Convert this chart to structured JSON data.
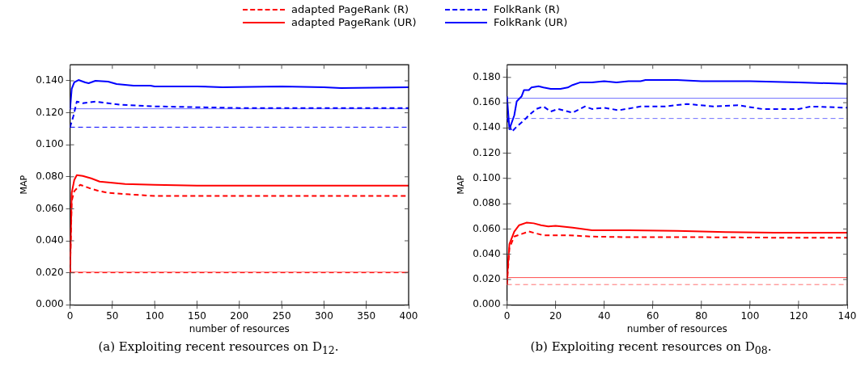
{
  "chart_data": [
    {
      "type": "line",
      "xlabel": "number of resources",
      "ylabel": "MAP",
      "legend": "top",
      "grid": false,
      "marker": "none",
      "xlim": [
        0,
        400
      ],
      "xticks": [
        0,
        50,
        100,
        150,
        200,
        250,
        300,
        350,
        400
      ],
      "ylim": [
        0,
        0.15
      ],
      "yticks": [
        {
          "value": 0,
          "label": "0.000"
        },
        {
          "value": 0.02,
          "label": "0.020"
        },
        {
          "value": 0.04,
          "label": "0.040"
        },
        {
          "value": 0.06,
          "label": "0.060"
        },
        {
          "value": 0.08,
          "label": "0.080"
        },
        {
          "value": 0.1,
          "label": "0.100"
        },
        {
          "value": 0.12,
          "label": "0.120"
        },
        {
          "value": 0.14,
          "label": "0.140"
        }
      ],
      "series": [
        {
          "name": "adapted PageRank (R)",
          "color": "#ff0000",
          "line_style": "dashed",
          "x": [
            0,
            2,
            5,
            12,
            25,
            35,
            45,
            70,
            100,
            400
          ],
          "values": [
            0.02,
            0.065,
            0.071,
            0.075,
            0.0725,
            0.071,
            0.07,
            0.069,
            0.068,
            0.068
          ]
        },
        {
          "name": "adapted PageRank (UR)",
          "color": "#ff0000",
          "line_style": "solid",
          "x": [
            0,
            2,
            5,
            8,
            15,
            25,
            35,
            45,
            65,
            100,
            150,
            400
          ],
          "values": [
            0.02,
            0.07,
            0.078,
            0.081,
            0.0805,
            0.079,
            0.077,
            0.0765,
            0.0755,
            0.075,
            0.0745,
            0.0745
          ]
        },
        {
          "name": "FolkRank (R)",
          "color": "#0000ff",
          "line_style": "dashed",
          "x": [
            0,
            4,
            8,
            15,
            30,
            45,
            60,
            100,
            150,
            200,
            400
          ],
          "values": [
            0.111,
            0.118,
            0.127,
            0.126,
            0.127,
            0.126,
            0.125,
            0.124,
            0.1235,
            0.123,
            0.123
          ]
        },
        {
          "name": "FolkRank (UR)",
          "color": "#0000ff",
          "line_style": "solid",
          "x": [
            0,
            2,
            5,
            10,
            18,
            22,
            30,
            45,
            55,
            75,
            95,
            100,
            150,
            180,
            250,
            300,
            320,
            400
          ],
          "values": [
            0.122,
            0.135,
            0.139,
            0.1405,
            0.139,
            0.1385,
            0.14,
            0.1395,
            0.138,
            0.137,
            0.137,
            0.1365,
            0.1365,
            0.136,
            0.1365,
            0.136,
            0.1355,
            0.136
          ]
        }
      ],
      "ref_lines": [
        {
          "axis": "y",
          "value": 0.1225,
          "color": "#6f6fff",
          "line_style": "solid"
        },
        {
          "axis": "y",
          "value": 0.111,
          "color": "#0000ff",
          "line_style": "dashed"
        },
        {
          "axis": "y",
          "value": 0.0205,
          "color": "#ff7070",
          "line_style": "solid"
        },
        {
          "axis": "y",
          "value": 0.02,
          "color": "#ff0000",
          "line_style": "dashed"
        }
      ],
      "annotations": [
        "(a) Exploiting recent resources on D$_{12}$."
      ]
    },
    {
      "type": "line",
      "xlabel": "number of resources",
      "ylabel": "MAP",
      "legend": "top",
      "grid": false,
      "marker": "none",
      "xlim": [
        0,
        140
      ],
      "xticks": [
        0,
        20,
        40,
        60,
        80,
        100,
        120,
        140
      ],
      "ylim": [
        0,
        0.19
      ],
      "yticks": [
        {
          "value": 0,
          "label": "0.000"
        },
        {
          "value": 0.02,
          "label": "0.020"
        },
        {
          "value": 0.04,
          "label": "0.040"
        },
        {
          "value": 0.06,
          "label": "0.060"
        },
        {
          "value": 0.08,
          "label": "0.080"
        },
        {
          "value": 0.1,
          "label": "0.100"
        },
        {
          "value": 0.12,
          "label": "0.120"
        },
        {
          "value": 0.14,
          "label": "0.140"
        },
        {
          "value": 0.16,
          "label": "0.160"
        },
        {
          "value": 0.18,
          "label": "0.180"
        }
      ],
      "series": [
        {
          "name": "adapted PageRank (R)",
          "color": "#ff0000",
          "line_style": "dashed",
          "x": [
            0,
            1,
            3,
            6,
            9,
            15,
            25,
            35,
            50,
            80,
            120,
            140
          ],
          "values": [
            0.016,
            0.045,
            0.054,
            0.056,
            0.058,
            0.055,
            0.055,
            0.054,
            0.0535,
            0.0535,
            0.053,
            0.053
          ]
        },
        {
          "name": "adapted PageRank (UR)",
          "color": "#ff0000",
          "line_style": "solid",
          "x": [
            0,
            1,
            3,
            5,
            8,
            11,
            14,
            17,
            20,
            27,
            35,
            50,
            70,
            90,
            110,
            140
          ],
          "values": [
            0.02,
            0.048,
            0.058,
            0.063,
            0.065,
            0.0645,
            0.063,
            0.062,
            0.0625,
            0.061,
            0.059,
            0.059,
            0.0585,
            0.0575,
            0.057,
            0.057
          ]
        },
        {
          "name": "FolkRank (R)",
          "color": "#0000ff",
          "line_style": "dashed",
          "x": [
            0,
            2,
            4,
            7,
            9,
            12,
            15,
            18,
            21,
            27,
            32,
            35,
            40,
            46,
            55,
            65,
            74,
            85,
            95,
            105,
            120,
            125,
            140
          ],
          "values": [
            0.148,
            0.137,
            0.141,
            0.146,
            0.15,
            0.155,
            0.157,
            0.153,
            0.155,
            0.152,
            0.157,
            0.155,
            0.156,
            0.154,
            0.157,
            0.157,
            0.159,
            0.157,
            0.158,
            0.155,
            0.155,
            0.157,
            0.156
          ]
        },
        {
          "name": "FolkRank (UR)",
          "color": "#0000ff",
          "line_style": "solid",
          "x": [
            0,
            1,
            3,
            4,
            6,
            7,
            9,
            10,
            13,
            15,
            18,
            22,
            25,
            27,
            30,
            35,
            40,
            45,
            50,
            55,
            57,
            70,
            80,
            100,
            120,
            140
          ],
          "values": [
            0.165,
            0.139,
            0.15,
            0.161,
            0.165,
            0.17,
            0.17,
            0.172,
            0.173,
            0.172,
            0.171,
            0.171,
            0.172,
            0.174,
            0.176,
            0.176,
            0.177,
            0.176,
            0.177,
            0.177,
            0.178,
            0.178,
            0.177,
            0.177,
            0.176,
            0.175
          ]
        }
      ],
      "ref_lines": [
        {
          "axis": "y",
          "value": 0.1635,
          "color": "#6f6fff",
          "line_style": "solid"
        },
        {
          "axis": "y",
          "value": 0.1475,
          "color": "#6f6fff",
          "line_style": "dashed"
        },
        {
          "axis": "y",
          "value": 0.0215,
          "color": "#ff5050",
          "line_style": "solid"
        },
        {
          "axis": "y",
          "value": 0.016,
          "color": "#ff7070",
          "line_style": "dashed"
        }
      ],
      "annotations": [
        "(b) Exploiting recent resources on D$_{08}$."
      ]
    }
  ]
}
